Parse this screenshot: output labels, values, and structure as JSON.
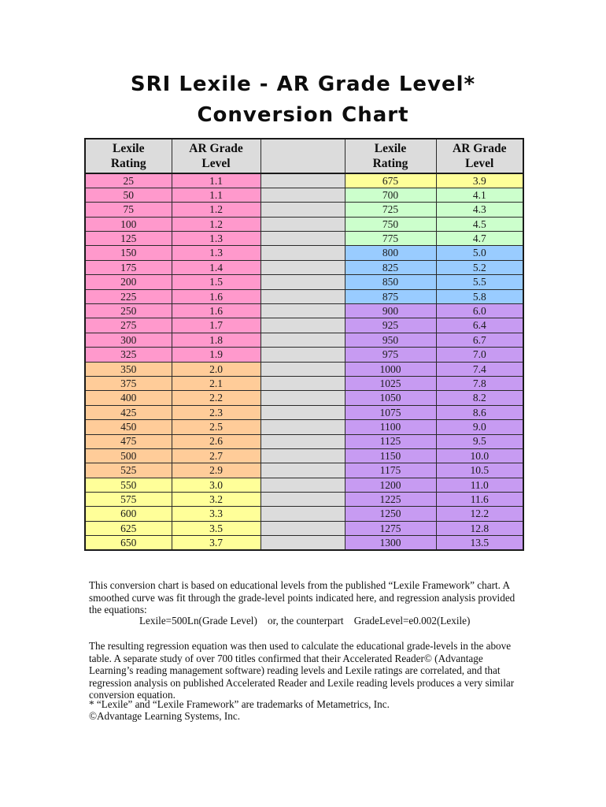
{
  "title": {
    "line1": "SRI Lexile - AR Grade Level*",
    "line2": "Conversion Chart"
  },
  "colors": {
    "pink": "#FF99CC",
    "orange": "#FFCC99",
    "yellow": "#FFFF99",
    "green": "#CCFFCC",
    "blue": "#99CCFF",
    "purple": "#C79BF2",
    "gray": "#DCDCDC"
  },
  "table": {
    "headers": {
      "lexile": "Lexile\nRating",
      "grade": "AR Grade\nLevel",
      "spacer": ""
    },
    "rows": [
      {
        "left": {
          "lexile": "25",
          "grade": "1.1",
          "color": "pink"
        },
        "right": {
          "lexile": "675",
          "grade": "3.9",
          "color": "yellow"
        }
      },
      {
        "left": {
          "lexile": "50",
          "grade": "1.1",
          "color": "pink"
        },
        "right": {
          "lexile": "700",
          "grade": "4.1",
          "color": "green"
        }
      },
      {
        "left": {
          "lexile": "75",
          "grade": "1.2",
          "color": "pink"
        },
        "right": {
          "lexile": "725",
          "grade": "4.3",
          "color": "green"
        }
      },
      {
        "left": {
          "lexile": "100",
          "grade": "1.2",
          "color": "pink"
        },
        "right": {
          "lexile": "750",
          "grade": "4.5",
          "color": "green"
        }
      },
      {
        "left": {
          "lexile": "125",
          "grade": "1.3",
          "color": "pink"
        },
        "right": {
          "lexile": "775",
          "grade": "4.7",
          "color": "green"
        }
      },
      {
        "left": {
          "lexile": "150",
          "grade": "1.3",
          "color": "pink"
        },
        "right": {
          "lexile": "800",
          "grade": "5.0",
          "color": "blue"
        }
      },
      {
        "left": {
          "lexile": "175",
          "grade": "1.4",
          "color": "pink"
        },
        "right": {
          "lexile": "825",
          "grade": "5.2",
          "color": "blue"
        }
      },
      {
        "left": {
          "lexile": "200",
          "grade": "1.5",
          "color": "pink"
        },
        "right": {
          "lexile": "850",
          "grade": "5.5",
          "color": "blue"
        }
      },
      {
        "left": {
          "lexile": "225",
          "grade": "1.6",
          "color": "pink"
        },
        "right": {
          "lexile": "875",
          "grade": "5.8",
          "color": "blue"
        }
      },
      {
        "left": {
          "lexile": "250",
          "grade": "1.6",
          "color": "pink"
        },
        "right": {
          "lexile": "900",
          "grade": "6.0",
          "color": "purple"
        }
      },
      {
        "left": {
          "lexile": "275",
          "grade": "1.7",
          "color": "pink"
        },
        "right": {
          "lexile": "925",
          "grade": "6.4",
          "color": "purple"
        }
      },
      {
        "left": {
          "lexile": "300",
          "grade": "1.8",
          "color": "pink"
        },
        "right": {
          "lexile": "950",
          "grade": "6.7",
          "color": "purple"
        }
      },
      {
        "left": {
          "lexile": "325",
          "grade": "1.9",
          "color": "pink"
        },
        "right": {
          "lexile": "975",
          "grade": "7.0",
          "color": "purple"
        }
      },
      {
        "left": {
          "lexile": "350",
          "grade": "2.0",
          "color": "orange"
        },
        "right": {
          "lexile": "1000",
          "grade": "7.4",
          "color": "purple"
        }
      },
      {
        "left": {
          "lexile": "375",
          "grade": "2.1",
          "color": "orange"
        },
        "right": {
          "lexile": "1025",
          "grade": "7.8",
          "color": "purple"
        }
      },
      {
        "left": {
          "lexile": "400",
          "grade": "2.2",
          "color": "orange"
        },
        "right": {
          "lexile": "1050",
          "grade": "8.2",
          "color": "purple"
        }
      },
      {
        "left": {
          "lexile": "425",
          "grade": "2.3",
          "color": "orange"
        },
        "right": {
          "lexile": "1075",
          "grade": "8.6",
          "color": "purple"
        }
      },
      {
        "left": {
          "lexile": "450",
          "grade": "2.5",
          "color": "orange"
        },
        "right": {
          "lexile": "1100",
          "grade": "9.0",
          "color": "purple"
        }
      },
      {
        "left": {
          "lexile": "475",
          "grade": "2.6",
          "color": "orange"
        },
        "right": {
          "lexile": "1125",
          "grade": "9.5",
          "color": "purple"
        }
      },
      {
        "left": {
          "lexile": "500",
          "grade": "2.7",
          "color": "orange"
        },
        "right": {
          "lexile": "1150",
          "grade": "10.0",
          "color": "purple"
        }
      },
      {
        "left": {
          "lexile": "525",
          "grade": "2.9",
          "color": "orange"
        },
        "right": {
          "lexile": "1175",
          "grade": "10.5",
          "color": "purple"
        }
      },
      {
        "left": {
          "lexile": "550",
          "grade": "3.0",
          "color": "yellow"
        },
        "right": {
          "lexile": "1200",
          "grade": "11.0",
          "color": "purple"
        }
      },
      {
        "left": {
          "lexile": "575",
          "grade": "3.2",
          "color": "yellow"
        },
        "right": {
          "lexile": "1225",
          "grade": "11.6",
          "color": "purple"
        }
      },
      {
        "left": {
          "lexile": "600",
          "grade": "3.3",
          "color": "yellow"
        },
        "right": {
          "lexile": "1250",
          "grade": "12.2",
          "color": "purple"
        }
      },
      {
        "left": {
          "lexile": "625",
          "grade": "3.5",
          "color": "yellow"
        },
        "right": {
          "lexile": "1275",
          "grade": "12.8",
          "color": "purple"
        }
      },
      {
        "left": {
          "lexile": "650",
          "grade": "3.7",
          "color": "yellow"
        },
        "right": {
          "lexile": "1300",
          "grade": "13.5",
          "color": "purple"
        }
      }
    ]
  },
  "body_text": {
    "paragraph1": "This conversion chart is based on educational levels from the published “Lexile Framework” chart.  A smoothed curve was fit through the grade-level points indicated here, and regression analysis provided the equations:",
    "equation": "Lexile=500Ln(Grade Level)    or, the counterpart    GradeLevel=e0.002(Lexile)",
    "paragraph2": "The resulting regression equation was then used to calculate the educational grade-levels in the above table.  A separate study of over 700 titles confirmed that their Accelerated Reader© (Advantage Learning’s reading management software) reading levels and Lexile ratings are correlated, and that regression analysis on published Accelerated Reader and Lexile reading levels produces a very similar conversion equation.",
    "footnote1": "* “Lexile” and “Lexile Framework” are trademarks of Metametrics, Inc.",
    "footnote2": "©Advantage Learning Systems, Inc."
  }
}
